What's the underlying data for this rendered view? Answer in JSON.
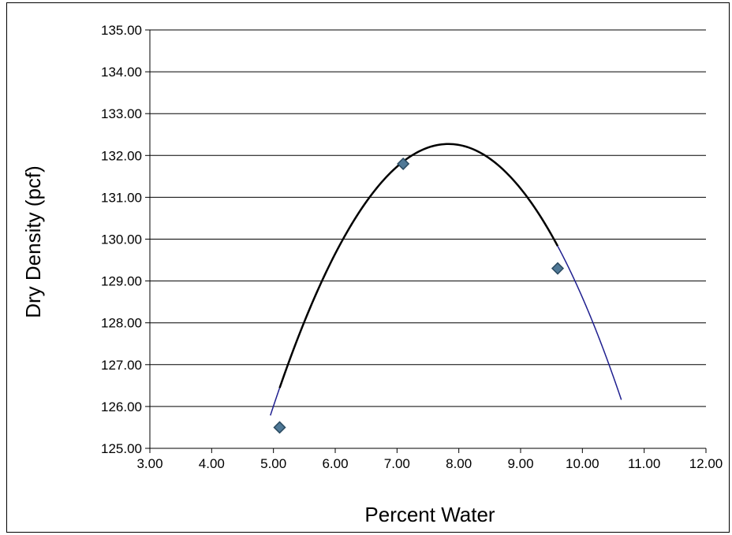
{
  "chart_data": {
    "type": "scatter",
    "title": "",
    "xlabel": "Percent Water",
    "ylabel": "Dry Density (pcf)",
    "xlim": [
      3.0,
      12.0
    ],
    "ylim": [
      125.0,
      135.0
    ],
    "x_ticks": [
      "3.00",
      "4.00",
      "5.00",
      "6.00",
      "7.00",
      "8.00",
      "9.00",
      "10.00",
      "11.00",
      "12.00"
    ],
    "y_ticks": [
      "125.00",
      "126.00",
      "127.00",
      "128.00",
      "129.00",
      "130.00",
      "131.00",
      "132.00",
      "133.00",
      "134.00",
      "135.00"
    ],
    "grid": "horizontal",
    "legend": "none",
    "series": [
      {
        "marker": "diamond",
        "points": [
          {
            "x": 5.1,
            "y": 125.5
          },
          {
            "x": 7.1,
            "y": 131.8
          },
          {
            "x": 9.6,
            "y": 129.3
          }
        ]
      }
    ],
    "fit_curve": {
      "type": "polynomial-order-2",
      "coefficients": [
        -0.78095,
        12.23333,
        84.3661
      ],
      "x_range": [
        4.95,
        10.63
      ],
      "colors": {
        "main": "#000000",
        "tail": "#1f1f8f"
      }
    },
    "colors": {
      "marker_fill": "#4f7896",
      "marker_edge": "#2a4a60",
      "grid": "#000000"
    }
  }
}
